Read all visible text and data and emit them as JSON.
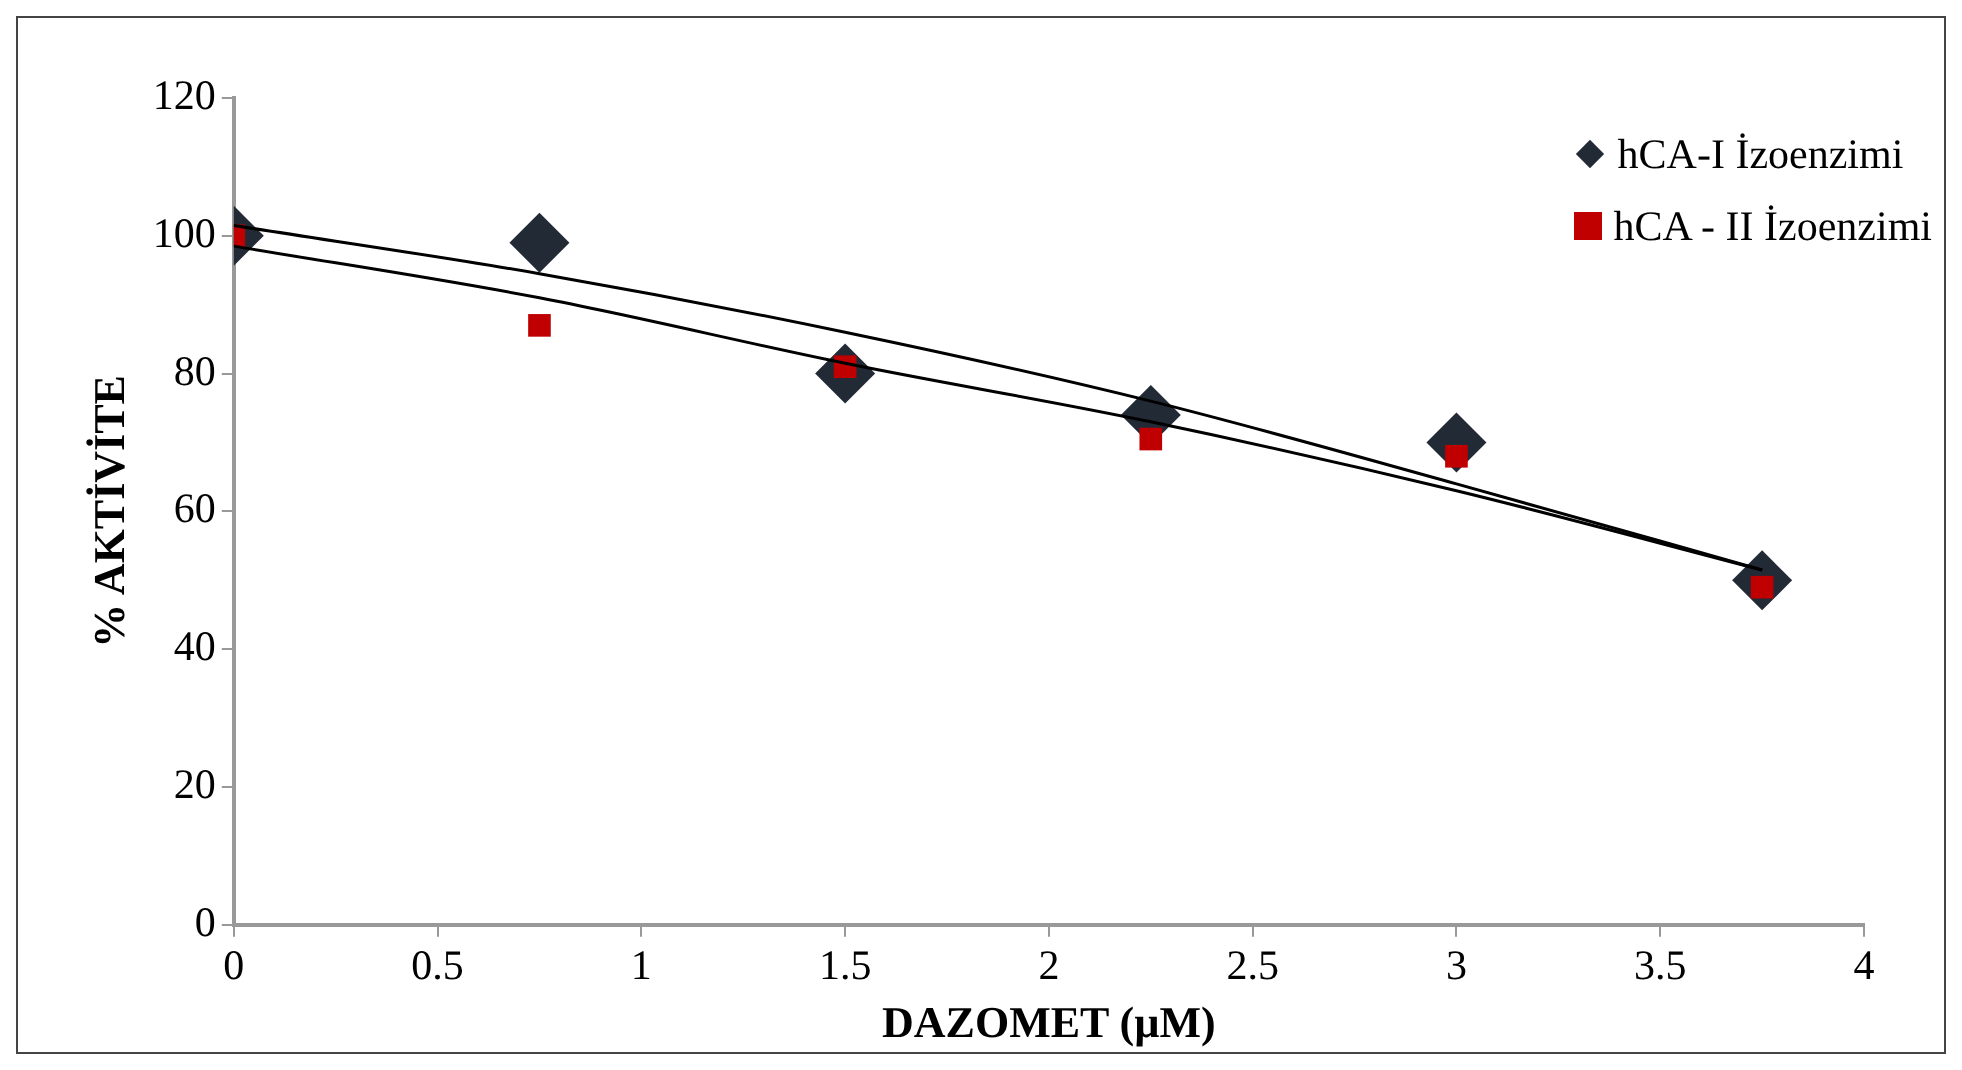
{
  "chart_data": {
    "type": "scatter",
    "xlabel": "DAZOMET (µM)",
    "ylabel": "% AKTİVİTE",
    "xlim": [
      0,
      4
    ],
    "xticks": [
      0,
      0.5,
      1,
      1.5,
      2,
      2.5,
      3,
      3.5,
      4
    ],
    "ylim": [
      0,
      120
    ],
    "yticks": [
      0,
      20,
      40,
      60,
      80,
      100,
      120
    ],
    "grid": false,
    "legend": "top right",
    "series": [
      {
        "name": "hCA-I İzoenzimi",
        "color": "#222a36",
        "marker": "diamond",
        "x": [
          0,
          0.75,
          1.5,
          2.25,
          3,
          3.75
        ],
        "values": [
          100,
          99,
          80,
          74,
          70,
          50
        ]
      },
      {
        "name": "hCA - II İzoenzimi",
        "color": "#c00000",
        "marker": "square",
        "x": [
          0,
          0.75,
          1.5,
          2.25,
          3,
          3.75
        ],
        "values": [
          100,
          87,
          81,
          70.5,
          68,
          49
        ]
      },
      {
        "type": "line",
        "color": "#000000",
        "marker": "none",
        "x": [
          0,
          0.75,
          1.5,
          2.25,
          3,
          3.75
        ],
        "values": [
          101.5,
          94.5,
          86,
          76,
          64,
          51.5
        ]
      },
      {
        "type": "line",
        "color": "#000000",
        "marker": "none",
        "x": [
          0,
          0.75,
          1.5,
          2.25,
          3,
          3.75
        ],
        "values": [
          98.5,
          91,
          81.5,
          73,
          63,
          51.5
        ]
      }
    ]
  }
}
